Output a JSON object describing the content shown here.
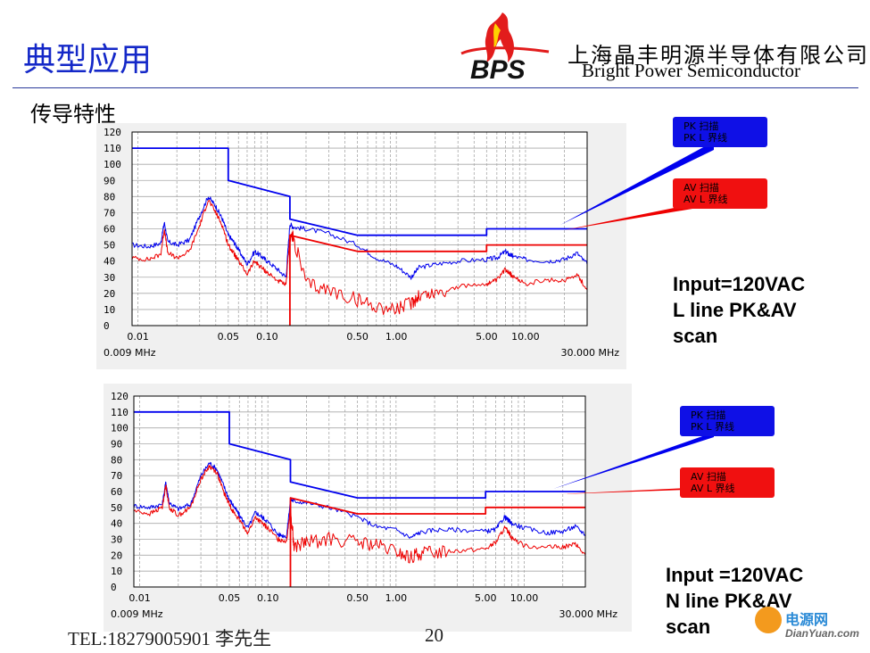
{
  "slide": {
    "title": "典型应用",
    "subtitle": "传导特性",
    "company_cn": "上海晶丰明源半导体有限公司",
    "company_en": "Bright Power Semiconductor",
    "logo_text": "BPS",
    "footer_contact": "TEL:18279005901   李先生",
    "page_number": "20",
    "watermark_cn": "电源网",
    "watermark_url": "DianYuan.com",
    "colors": {
      "title": "#1428c8",
      "pk": "#0000ee",
      "av": "#ee0000",
      "grid": "#a8a8a8"
    }
  },
  "chart_data": [
    {
      "type": "line",
      "annotation": "Input=120VAC\nL line PK&AV\nscan",
      "x_scale": "log",
      "xlim": [
        0.009,
        30
      ],
      "ylim": [
        0,
        120
      ],
      "y_ticks": [
        0,
        10,
        20,
        30,
        40,
        50,
        60,
        70,
        80,
        90,
        100,
        110,
        120
      ],
      "x_tick_labels": [
        {
          "x": 0.01,
          "label": "0.01"
        },
        {
          "x": 0.05,
          "label": "0.05"
        },
        {
          "x": 0.1,
          "label": "0.10"
        },
        {
          "x": 0.5,
          "label": "0.50"
        },
        {
          "x": 1.0,
          "label": "1.00"
        },
        {
          "x": 5.0,
          "label": "5.00"
        },
        {
          "x": 10.0,
          "label": "10.00"
        }
      ],
      "x_start_label": "0.009 MHz",
      "x_end_label": "30.000 MHz",
      "grid": true,
      "legend": [
        {
          "name": "PK 扫描\nPK L 界线",
          "color": "#0000ee"
        },
        {
          "name": "AV 扫描\nAV L 界线",
          "color": "#ee0000"
        }
      ],
      "series": [
        {
          "name": "PK 扫描",
          "color": "#0000ee",
          "role": "scan",
          "x": [
            0.009,
            0.012,
            0.015,
            0.016,
            0.017,
            0.02,
            0.025,
            0.03,
            0.035,
            0.04,
            0.045,
            0.05,
            0.055,
            0.06,
            0.07,
            0.08,
            0.09,
            0.1,
            0.12,
            0.14,
            0.15,
            0.16,
            0.2,
            0.3,
            0.5,
            0.7,
            1.0,
            1.3,
            1.5,
            2,
            3,
            5,
            6,
            7,
            7.5,
            8,
            10,
            15,
            20,
            25,
            30
          ],
          "y": [
            50,
            49,
            51,
            64,
            52,
            50,
            53,
            68,
            80,
            74,
            66,
            56,
            52,
            47,
            38,
            46,
            43,
            40,
            35,
            30,
            63,
            61,
            60,
            57,
            50,
            42,
            37,
            30,
            36,
            38,
            40,
            41,
            42,
            46,
            44,
            43,
            41,
            40,
            41,
            45,
            38
          ]
        },
        {
          "name": "AV 扫描",
          "color": "#ee0000",
          "role": "scan",
          "x": [
            0.009,
            0.012,
            0.015,
            0.016,
            0.017,
            0.02,
            0.025,
            0.03,
            0.035,
            0.04,
            0.045,
            0.05,
            0.055,
            0.06,
            0.07,
            0.08,
            0.09,
            0.1,
            0.12,
            0.14,
            0.15,
            0.16,
            0.2,
            0.3,
            0.5,
            0.7,
            1.0,
            1.3,
            1.5,
            2,
            3,
            5,
            6,
            7,
            7.5,
            8,
            10,
            15,
            20,
            25,
            30
          ],
          "y": [
            42,
            41,
            44,
            60,
            45,
            42,
            46,
            62,
            78,
            70,
            62,
            50,
            45,
            40,
            32,
            40,
            36,
            33,
            28,
            25,
            56,
            54,
            26,
            22,
            16,
            12,
            10,
            14,
            19,
            20,
            24,
            26,
            28,
            35,
            33,
            30,
            26,
            28,
            28,
            32,
            22
          ]
        },
        {
          "name": "PK L 界线",
          "color": "#0000ee",
          "role": "limit",
          "x": [
            0.009,
            0.05,
            0.05,
            0.15,
            0.15,
            0.5,
            5,
            5,
            30
          ],
          "y": [
            110,
            110,
            90,
            80,
            66,
            56,
            56,
            60,
            60
          ]
        },
        {
          "name": "AV L 界线",
          "color": "#ee0000",
          "role": "limit",
          "x": [
            0.15,
            0.15,
            0.5,
            5,
            5,
            30
          ],
          "y": [
            0,
            56,
            46,
            46,
            50,
            50
          ]
        }
      ]
    },
    {
      "type": "line",
      "annotation": "Input =120VAC\nN line PK&AV\nscan",
      "x_scale": "log",
      "xlim": [
        0.009,
        30
      ],
      "ylim": [
        0,
        120
      ],
      "y_ticks": [
        0,
        10,
        20,
        30,
        40,
        50,
        60,
        70,
        80,
        90,
        100,
        110,
        120
      ],
      "x_tick_labels": [
        {
          "x": 0.01,
          "label": "0.01"
        },
        {
          "x": 0.05,
          "label": "0.05"
        },
        {
          "x": 0.1,
          "label": "0.10"
        },
        {
          "x": 0.5,
          "label": "0.50"
        },
        {
          "x": 1.0,
          "label": "1.00"
        },
        {
          "x": 5.0,
          "label": "5.00"
        },
        {
          "x": 10.0,
          "label": "10.00"
        }
      ],
      "x_start_label": "0.009 MHz",
      "x_end_label": "30.000 MHz",
      "grid": true,
      "legend": [
        {
          "name": "PK 扫描\nPK L 界线",
          "color": "#0000ee"
        },
        {
          "name": "AV 扫描\nAV L 界线",
          "color": "#ee0000"
        }
      ],
      "series": [
        {
          "name": "PK 扫描",
          "color": "#0000ee",
          "role": "scan",
          "x": [
            0.009,
            0.012,
            0.015,
            0.016,
            0.017,
            0.02,
            0.025,
            0.03,
            0.035,
            0.04,
            0.045,
            0.05,
            0.055,
            0.06,
            0.07,
            0.08,
            0.09,
            0.1,
            0.12,
            0.14,
            0.15,
            0.16,
            0.2,
            0.3,
            0.5,
            0.7,
            1.0,
            1.3,
            1.5,
            2,
            3,
            5,
            6,
            7,
            7.5,
            8,
            10,
            15,
            20,
            25,
            30
          ],
          "y": [
            51,
            50,
            52,
            66,
            53,
            49,
            52,
            70,
            78,
            74,
            64,
            55,
            50,
            45,
            37,
            47,
            44,
            41,
            33,
            32,
            55,
            54,
            53,
            50,
            44,
            38,
            36,
            31,
            34,
            36,
            36,
            35,
            36,
            44,
            42,
            40,
            37,
            34,
            35,
            38,
            33
          ]
        },
        {
          "name": "AV 扫描",
          "color": "#ee0000",
          "role": "scan",
          "x": [
            0.009,
            0.012,
            0.015,
            0.016,
            0.017,
            0.02,
            0.025,
            0.03,
            0.035,
            0.04,
            0.045,
            0.05,
            0.055,
            0.06,
            0.07,
            0.08,
            0.09,
            0.1,
            0.12,
            0.14,
            0.15,
            0.16,
            0.2,
            0.3,
            0.5,
            0.7,
            1.0,
            1.3,
            1.5,
            2,
            3,
            5,
            6,
            7,
            7.5,
            8,
            10,
            15,
            20,
            25,
            30
          ],
          "y": [
            48,
            46,
            50,
            64,
            50,
            45,
            50,
            68,
            76,
            72,
            60,
            52,
            46,
            42,
            34,
            44,
            40,
            37,
            30,
            29,
            50,
            25,
            28,
            30,
            28,
            26,
            22,
            18,
            21,
            22,
            23,
            24,
            28,
            37,
            35,
            31,
            26,
            25,
            25,
            27,
            20
          ]
        },
        {
          "name": "PK L 界线",
          "color": "#0000ee",
          "role": "limit",
          "x": [
            0.009,
            0.05,
            0.05,
            0.15,
            0.15,
            0.5,
            5,
            5,
            30
          ],
          "y": [
            110,
            110,
            90,
            80,
            66,
            56,
            56,
            60,
            60
          ]
        },
        {
          "name": "AV L 界线",
          "color": "#ee0000",
          "role": "limit",
          "x": [
            0.15,
            0.15,
            0.5,
            5,
            5,
            30
          ],
          "y": [
            0,
            56,
            46,
            46,
            50,
            50
          ]
        }
      ]
    }
  ]
}
